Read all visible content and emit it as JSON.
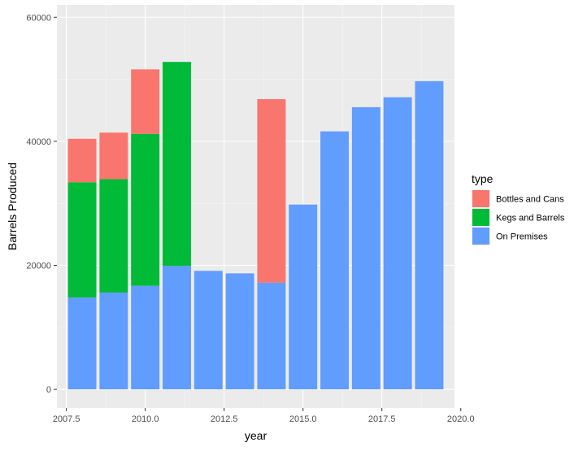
{
  "chart_data": {
    "type": "bar",
    "stacked": true,
    "xlabel": "year",
    "ylabel": "Barrels Produced",
    "xlim": [
      2007.2,
      2019.8
    ],
    "ylim": [
      -3000,
      62000
    ],
    "x_ticks": [
      2007.5,
      2010.0,
      2012.5,
      2015.0,
      2017.5,
      2020.0
    ],
    "x_tick_labels": [
      "2007.5",
      "2010.0",
      "2012.5",
      "2015.0",
      "2017.5",
      "2020.0"
    ],
    "y_ticks": [
      0,
      20000,
      40000,
      60000
    ],
    "y_tick_labels": [
      "0",
      "20000",
      "40000",
      "60000"
    ],
    "grid": true,
    "legend": {
      "title": "type",
      "placement": "right",
      "entries": [
        "Bottles and Cans",
        "Kegs and Barrels",
        "On Premises"
      ]
    },
    "stack_order": [
      "On Premises",
      "Kegs and Barrels",
      "Bottles and Cans"
    ],
    "series": [
      {
        "name": "On Premises",
        "color": "#619CFF",
        "x": [
          2008,
          2009,
          2010,
          2011,
          2012,
          2013,
          2014,
          2015,
          2016,
          2017,
          2018,
          2019
        ],
        "values": [
          14800,
          15600,
          16700,
          19900,
          19100,
          18700,
          17200,
          29800,
          41600,
          45500,
          47100,
          49700
        ]
      },
      {
        "name": "Kegs and Barrels",
        "color": "#00BA38",
        "x": [
          2008,
          2009,
          2010,
          2011,
          2012,
          2013,
          2014,
          2015,
          2016,
          2017,
          2018,
          2019
        ],
        "values": [
          18600,
          18300,
          24500,
          32900,
          0,
          0,
          0,
          0,
          0,
          0,
          0,
          0
        ]
      },
      {
        "name": "Bottles and Cans",
        "color": "#F8766D",
        "x": [
          2008,
          2009,
          2010,
          2011,
          2012,
          2013,
          2014,
          2015,
          2016,
          2017,
          2018,
          2019
        ],
        "values": [
          7000,
          7500,
          10400,
          0,
          0,
          0,
          29600,
          0,
          0,
          0,
          0,
          0
        ]
      }
    ]
  }
}
